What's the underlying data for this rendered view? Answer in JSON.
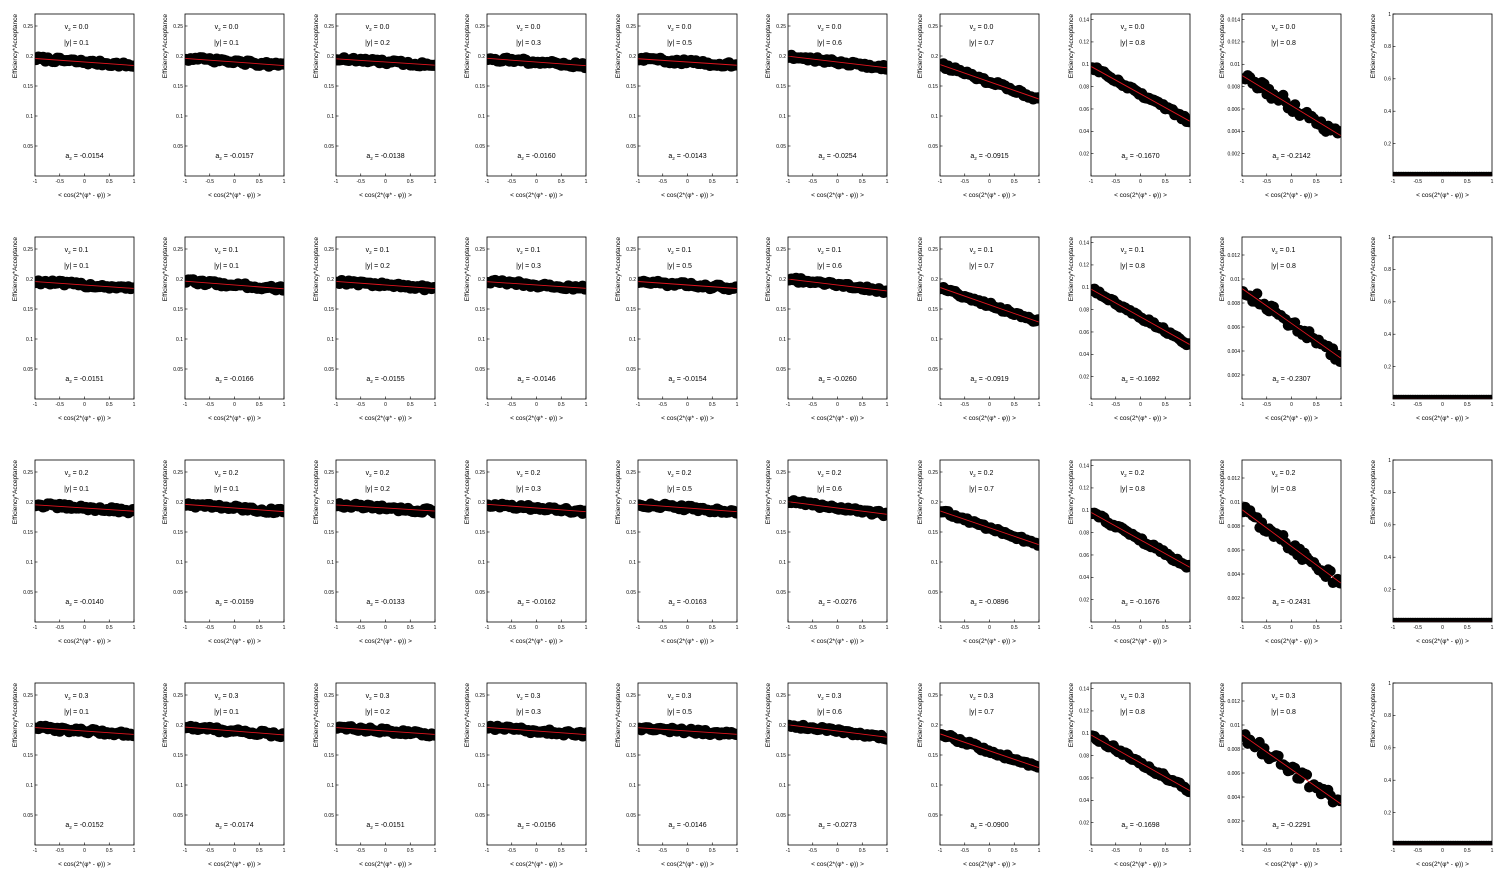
{
  "labels": {
    "ylabel": "Efficiency*Acceptance",
    "xlabel": "< cos(2*(φ* - φ)) >",
    "v2_prefix": "v",
    "v2_sub": "2",
    "v2_sep": " = ",
    "y_prefix": "|y| = ",
    "a2_prefix": "a",
    "a2_sub": "2",
    "a2_sep": " = "
  },
  "colors": {
    "points": "#000000",
    "fit": "#e0141e",
    "frame": "#000000"
  },
  "chart_data": {
    "type": "scatter",
    "grid": false,
    "layout": "4 rows x 10 columns",
    "x_ticks": [
      "-1",
      "-0.5",
      "0",
      "0.5",
      "1"
    ],
    "xlim": [
      -1,
      1
    ],
    "rows": [
      {
        "v2": "0.0",
        "panels": [
          {
            "y_abs": "0.1",
            "a2": "-0.0154",
            "intercept": 0.19,
            "ylim": [
              0,
              0.27
            ],
            "y_ticks": [
              "0.05",
              "0.1",
              "0.15",
              "0.2",
              "0.25"
            ]
          },
          {
            "y_abs": "0.1",
            "a2": "-0.0157",
            "intercept": 0.19,
            "ylim": [
              0,
              0.27
            ],
            "y_ticks": [
              "0.05",
              "0.1",
              "0.15",
              "0.2",
              "0.25"
            ]
          },
          {
            "y_abs": "0.2",
            "a2": "-0.0138",
            "intercept": 0.19,
            "ylim": [
              0,
              0.27
            ],
            "y_ticks": [
              "0.05",
              "0.1",
              "0.15",
              "0.2",
              "0.25"
            ]
          },
          {
            "y_abs": "0.3",
            "a2": "-0.0160",
            "intercept": 0.19,
            "ylim": [
              0,
              0.27
            ],
            "y_ticks": [
              "0.05",
              "0.1",
              "0.15",
              "0.2",
              "0.25"
            ]
          },
          {
            "y_abs": "0.5",
            "a2": "-0.0143",
            "intercept": 0.19,
            "ylim": [
              0,
              0.27
            ],
            "y_ticks": [
              "0.05",
              "0.1",
              "0.15",
              "0.2",
              "0.25"
            ]
          },
          {
            "y_abs": "0.6",
            "a2": "-0.0254",
            "intercept": 0.19,
            "ylim": [
              0,
              0.27
            ],
            "y_ticks": [
              "0.05",
              "0.1",
              "0.15",
              "0.2",
              "0.25"
            ]
          },
          {
            "y_abs": "0.7",
            "a2": "-0.0915",
            "intercept": 0.157,
            "ylim": [
              0,
              0.27
            ],
            "y_ticks": [
              "0.05",
              "0.1",
              "0.15",
              "0.2",
              "0.25"
            ]
          },
          {
            "y_abs": "0.8",
            "a2": "-0.1670",
            "intercept": 0.0735,
            "ylim": [
              0,
              0.145
            ],
            "y_ticks": [
              "0.02",
              "0.04",
              "0.06",
              "0.08",
              "0.1",
              "0.12",
              "0.14"
            ]
          },
          {
            "y_abs": "0.8",
            "a2": "-0.2142",
            "intercept": 0.0063,
            "ylim": [
              0,
              0.0145
            ],
            "y_ticks": [
              "0.002",
              "0.004",
              "0.006",
              "0.008",
              "0.01",
              "0.012",
              "0.014"
            ]
          },
          {
            "y_abs": "",
            "a2": "",
            "intercept": 0.0,
            "ylim": [
              0,
              1
            ],
            "y_ticks": [
              "0.2",
              "0.4",
              "0.6",
              "0.8",
              "1"
            ],
            "empty": true
          }
        ]
      },
      {
        "v2": "0.1",
        "panels": [
          {
            "y_abs": "0.1",
            "a2": "-0.0151",
            "intercept": 0.19,
            "ylim": [
              0,
              0.27
            ],
            "y_ticks": [
              "0.05",
              "0.1",
              "0.15",
              "0.2",
              "0.25"
            ]
          },
          {
            "y_abs": "0.1",
            "a2": "-0.0166",
            "intercept": 0.19,
            "ylim": [
              0,
              0.27
            ],
            "y_ticks": [
              "0.05",
              "0.1",
              "0.15",
              "0.2",
              "0.25"
            ]
          },
          {
            "y_abs": "0.2",
            "a2": "-0.0155",
            "intercept": 0.19,
            "ylim": [
              0,
              0.27
            ],
            "y_ticks": [
              "0.05",
              "0.1",
              "0.15",
              "0.2",
              "0.25"
            ]
          },
          {
            "y_abs": "0.3",
            "a2": "-0.0146",
            "intercept": 0.19,
            "ylim": [
              0,
              0.27
            ],
            "y_ticks": [
              "0.05",
              "0.1",
              "0.15",
              "0.2",
              "0.25"
            ]
          },
          {
            "y_abs": "0.5",
            "a2": "-0.0154",
            "intercept": 0.19,
            "ylim": [
              0,
              0.27
            ],
            "y_ticks": [
              "0.05",
              "0.1",
              "0.15",
              "0.2",
              "0.25"
            ]
          },
          {
            "y_abs": "0.6",
            "a2": "-0.0260",
            "intercept": 0.19,
            "ylim": [
              0,
              0.27
            ],
            "y_ticks": [
              "0.05",
              "0.1",
              "0.15",
              "0.2",
              "0.25"
            ]
          },
          {
            "y_abs": "0.7",
            "a2": "-0.0919",
            "intercept": 0.157,
            "ylim": [
              0,
              0.27
            ],
            "y_ticks": [
              "0.05",
              "0.1",
              "0.15",
              "0.2",
              "0.25"
            ]
          },
          {
            "y_abs": "0.8",
            "a2": "-0.1692",
            "intercept": 0.0735,
            "ylim": [
              0,
              0.145
            ],
            "y_ticks": [
              "0.02",
              "0.04",
              "0.06",
              "0.08",
              "0.1",
              "0.12",
              "0.14"
            ]
          },
          {
            "y_abs": "0.8",
            "a2": "-0.2307",
            "intercept": 0.0063,
            "ylim": [
              0,
              0.0135
            ],
            "y_ticks": [
              "0.002",
              "0.004",
              "0.006",
              "0.008",
              "0.01",
              "0.012"
            ]
          },
          {
            "y_abs": "",
            "a2": "",
            "intercept": 0.0,
            "ylim": [
              0,
              1
            ],
            "y_ticks": [
              "0.2",
              "0.4",
              "0.6",
              "0.8",
              "1"
            ],
            "empty": true
          }
        ]
      },
      {
        "v2": "0.2",
        "panels": [
          {
            "y_abs": "0.1",
            "a2": "-0.0140",
            "intercept": 0.19,
            "ylim": [
              0,
              0.27
            ],
            "y_ticks": [
              "0.05",
              "0.1",
              "0.15",
              "0.2",
              "0.25"
            ]
          },
          {
            "y_abs": "0.1",
            "a2": "-0.0159",
            "intercept": 0.19,
            "ylim": [
              0,
              0.27
            ],
            "y_ticks": [
              "0.05",
              "0.1",
              "0.15",
              "0.2",
              "0.25"
            ]
          },
          {
            "y_abs": "0.2",
            "a2": "-0.0133",
            "intercept": 0.19,
            "ylim": [
              0,
              0.27
            ],
            "y_ticks": [
              "0.05",
              "0.1",
              "0.15",
              "0.2",
              "0.25"
            ]
          },
          {
            "y_abs": "0.3",
            "a2": "-0.0162",
            "intercept": 0.19,
            "ylim": [
              0,
              0.27
            ],
            "y_ticks": [
              "0.05",
              "0.1",
              "0.15",
              "0.2",
              "0.25"
            ]
          },
          {
            "y_abs": "0.5",
            "a2": "-0.0163",
            "intercept": 0.19,
            "ylim": [
              0,
              0.27
            ],
            "y_ticks": [
              "0.05",
              "0.1",
              "0.15",
              "0.2",
              "0.25"
            ]
          },
          {
            "y_abs": "0.6",
            "a2": "-0.0276",
            "intercept": 0.19,
            "ylim": [
              0,
              0.27
            ],
            "y_ticks": [
              "0.05",
              "0.1",
              "0.15",
              "0.2",
              "0.25"
            ]
          },
          {
            "y_abs": "0.7",
            "a2": "-0.0896",
            "intercept": 0.157,
            "ylim": [
              0,
              0.27
            ],
            "y_ticks": [
              "0.05",
              "0.1",
              "0.15",
              "0.2",
              "0.25"
            ]
          },
          {
            "y_abs": "0.8",
            "a2": "-0.1676",
            "intercept": 0.0735,
            "ylim": [
              0,
              0.145
            ],
            "y_ticks": [
              "0.02",
              "0.04",
              "0.06",
              "0.08",
              "0.1",
              "0.12",
              "0.14"
            ]
          },
          {
            "y_abs": "0.8",
            "a2": "-0.2431",
            "intercept": 0.0063,
            "ylim": [
              0,
              0.0135
            ],
            "y_ticks": [
              "0.002",
              "0.004",
              "0.006",
              "0.008",
              "0.01",
              "0.012"
            ]
          },
          {
            "y_abs": "",
            "a2": "",
            "intercept": 0.0,
            "ylim": [
              0,
              1
            ],
            "y_ticks": [
              "0.2",
              "0.4",
              "0.6",
              "0.8",
              "1"
            ],
            "empty": true
          }
        ]
      },
      {
        "v2": "0.3",
        "panels": [
          {
            "y_abs": "0.1",
            "a2": "-0.0152",
            "intercept": 0.19,
            "ylim": [
              0,
              0.27
            ],
            "y_ticks": [
              "0.05",
              "0.1",
              "0.15",
              "0.2",
              "0.25"
            ]
          },
          {
            "y_abs": "0.1",
            "a2": "-0.0174",
            "intercept": 0.19,
            "ylim": [
              0,
              0.27
            ],
            "y_ticks": [
              "0.05",
              "0.1",
              "0.15",
              "0.2",
              "0.25"
            ]
          },
          {
            "y_abs": "0.2",
            "a2": "-0.0151",
            "intercept": 0.19,
            "ylim": [
              0,
              0.27
            ],
            "y_ticks": [
              "0.05",
              "0.1",
              "0.15",
              "0.2",
              "0.25"
            ]
          },
          {
            "y_abs": "0.3",
            "a2": "-0.0156",
            "intercept": 0.19,
            "ylim": [
              0,
              0.27
            ],
            "y_ticks": [
              "0.05",
              "0.1",
              "0.15",
              "0.2",
              "0.25"
            ]
          },
          {
            "y_abs": "0.5",
            "a2": "-0.0146",
            "intercept": 0.19,
            "ylim": [
              0,
              0.27
            ],
            "y_ticks": [
              "0.05",
              "0.1",
              "0.15",
              "0.2",
              "0.25"
            ]
          },
          {
            "y_abs": "0.6",
            "a2": "-0.0273",
            "intercept": 0.19,
            "ylim": [
              0,
              0.27
            ],
            "y_ticks": [
              "0.05",
              "0.1",
              "0.15",
              "0.2",
              "0.25"
            ]
          },
          {
            "y_abs": "0.7",
            "a2": "-0.0900",
            "intercept": 0.157,
            "ylim": [
              0,
              0.27
            ],
            "y_ticks": [
              "0.05",
              "0.1",
              "0.15",
              "0.2",
              "0.25"
            ]
          },
          {
            "y_abs": "0.8",
            "a2": "-0.1698",
            "intercept": 0.0735,
            "ylim": [
              0,
              0.145
            ],
            "y_ticks": [
              "0.02",
              "0.04",
              "0.06",
              "0.08",
              "0.1",
              "0.12",
              "0.14"
            ]
          },
          {
            "y_abs": "0.8",
            "a2": "-0.2291",
            "intercept": 0.0063,
            "ylim": [
              0,
              0.0135
            ],
            "y_ticks": [
              "0.002",
              "0.004",
              "0.006",
              "0.008",
              "0.01",
              "0.012"
            ]
          },
          {
            "y_abs": "",
            "a2": "",
            "intercept": 0.0,
            "ylim": [
              0,
              1
            ],
            "y_ticks": [
              "0.2",
              "0.4",
              "0.6",
              "0.8",
              "1"
            ],
            "empty": true
          }
        ]
      }
    ]
  }
}
